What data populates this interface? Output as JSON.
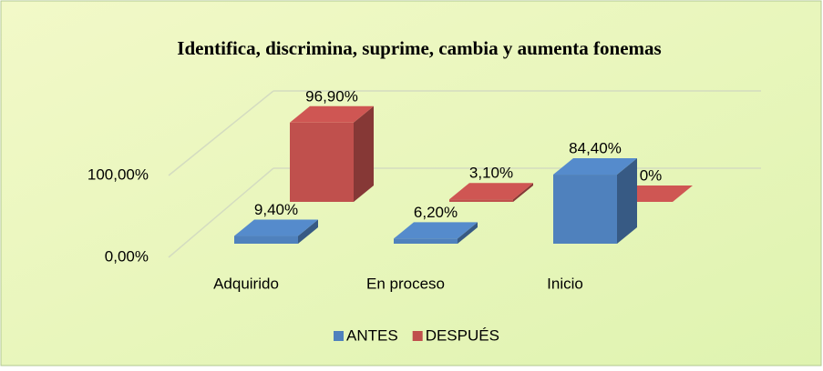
{
  "chart_data": {
    "type": "bar3d",
    "title": "Identifica, discrimina, suprime, cambia y aumenta fonemas",
    "categories": [
      "Adquirido",
      "En proceso",
      "Inicio"
    ],
    "series": [
      {
        "name": "ANTES",
        "color": "#4f81bd",
        "values": [
          9.4,
          6.2,
          84.4
        ],
        "value_labels": [
          "9,40%",
          "6,20%",
          "84,40%"
        ]
      },
      {
        "name": "DESPUÉS",
        "color": "#c0504d",
        "values": [
          96.9,
          3.1,
          0
        ],
        "value_labels": [
          "96,90%",
          "3,10%",
          "0%"
        ]
      }
    ],
    "ylim": [
      0,
      100
    ],
    "yticks": [
      {
        "value": 0,
        "label": "0,00%"
      },
      {
        "value": 100,
        "label": "100,00%"
      }
    ],
    "grid": true,
    "legend": "bottom"
  }
}
